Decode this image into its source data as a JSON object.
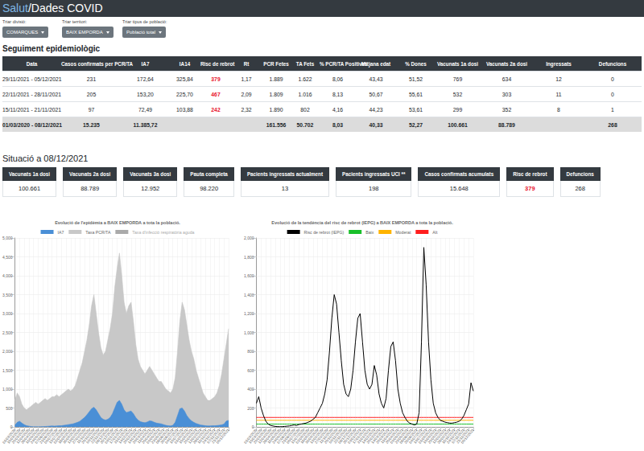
{
  "header": {
    "brand": "Salut",
    "title": "/Dades COVID"
  },
  "filters": [
    {
      "label": "Triar divisió:",
      "value": "COMARQUES"
    },
    {
      "label": "Triar territori:",
      "value": "BAIX EMPORDA"
    },
    {
      "label": "Triar tipus de població:",
      "value": "Població total"
    }
  ],
  "section1": {
    "title": "Seguiment epidemiològic",
    "table": {
      "columns": [
        "Data",
        "Casos confirmats per PCR/TA",
        "IA7",
        "IA14",
        "Risc de rebrot",
        "Rt",
        "PCR Fetes",
        "TA Fets",
        "% PCR/TA Positives",
        "Mitjana edat",
        "% Dones",
        "Vacunats 1a dosi",
        "Vacunats 2a dosi",
        "Ingressats",
        "Defuncions"
      ],
      "rows": [
        [
          "29/11/2021 - 05/12/2021",
          "231",
          "172,64",
          "325,84",
          {
            "text": "379",
            "color": "#e8102a"
          },
          "1,17",
          "1.889",
          "1.622",
          "8,06",
          "43,43",
          "51,52",
          "769",
          "634",
          "12",
          "0"
        ],
        [
          "22/11/2021 - 28/11/2021",
          "205",
          "153,20",
          "225,70",
          {
            "text": "467",
            "color": "#e8102a"
          },
          "2,09",
          "1.809",
          "1.016",
          "8,13",
          "50,67",
          "55,61",
          "532",
          "303",
          "11",
          "0"
        ],
        [
          "15/11/2021 - 21/11/2021",
          "97",
          "72,49",
          "103,88",
          {
            "text": "242",
            "color": "#e8102a"
          },
          "2,32",
          "1.890",
          "802",
          "4,16",
          "44,23",
          "53,61",
          "299",
          "352",
          "8",
          "1"
        ]
      ],
      "total": [
        "01/03/2020 - 08/12/2021",
        "15.235",
        "11.385,72",
        null,
        null,
        null,
        "161.556",
        "50.702",
        "8,03",
        "40,33",
        "52,27",
        "100.661",
        "88.789",
        null,
        "268"
      ]
    }
  },
  "section2": {
    "title": "Situació a 08/12/2021",
    "cards": [
      {
        "label": "Vacunats 1a dosi",
        "value": "100.661"
      },
      {
        "label": "Vacunats 2a dosi",
        "value": "88.789"
      },
      {
        "label": "Vacunats 3a dosi",
        "value": "12.952"
      },
      {
        "label": "Pauta completa",
        "value": "98.220"
      },
      {
        "label": "Pacients ingressats actualment",
        "value": "13"
      },
      {
        "label": "Pacients ingressats UCI **",
        "value": "198"
      },
      {
        "label": "Casos confirmats acumulats",
        "value": "15.648"
      },
      {
        "label": "Risc de rebrot",
        "value": {
          "text": "379",
          "color": "#e8102a"
        }
      },
      {
        "label": "Defuncions",
        "value": "268"
      }
    ]
  },
  "chart_data": [
    {
      "type": "area",
      "title": "Evolució de l'epidèmia a BAIX EMPORDA a tota la població.",
      "categories": [
        "01/03/2020",
        null,
        "15/03/2020",
        null,
        "29/03/2020",
        null,
        "12/04/2020",
        null,
        "26/04/2020",
        null,
        "10/05/2020",
        null,
        "24/05/2020",
        null,
        "07/06/2020",
        null,
        "21/06/2020",
        null,
        "05/07/2020",
        null,
        "19/07/2020",
        null,
        "02/08/2020",
        null,
        "16/08/2020",
        null,
        "30/08/2020",
        null,
        "13/09/2020",
        null,
        "27/09/2020",
        null,
        "11/10/2020",
        null,
        "25/10/2020",
        null,
        "08/11/2020",
        null,
        "22/11/2020",
        null,
        "06/12/2020",
        null,
        "20/12/2020",
        null,
        "03/01/2021",
        null,
        "17/01/2021",
        null,
        "31/01/2021",
        null,
        "14/02/2021",
        null,
        "28/02/2021",
        null,
        "14/03/2021",
        null,
        "28/03/2021",
        null,
        "11/04/2021",
        null,
        "25/04/2021",
        null,
        "09/05/2021",
        null,
        "23/05/2021",
        null,
        "06/06/2021",
        null,
        "20/06/2021",
        null,
        "04/07/2021",
        null,
        "18/07/2021",
        null,
        "01/08/2021",
        null,
        "15/08/2021",
        null,
        "29/08/2021",
        null,
        "12/09/2021",
        null,
        "26/09/2021",
        null,
        "10/10/2021",
        null,
        "24/10/2021",
        null,
        "07/11/2021",
        null,
        "21/11/2021",
        null,
        "05/12/2021"
      ],
      "series": [
        {
          "name": "IA7",
          "color": "#4a8fd6",
          "values": [
            40,
            120,
            150,
            100,
            60,
            30,
            20,
            10,
            5,
            5,
            5,
            5,
            10,
            10,
            15,
            20,
            25,
            20,
            25,
            30,
            30,
            40,
            50,
            60,
            70,
            80,
            100,
            120,
            150,
            200,
            250,
            320,
            400,
            480,
            520,
            450,
            350,
            250,
            200,
            180,
            200,
            250,
            350,
            500,
            650,
            700,
            600,
            450,
            380,
            400,
            420,
            350,
            250,
            180,
            140,
            120,
            110,
            130,
            160,
            150,
            120,
            100,
            90,
            80,
            60,
            40,
            30,
            25,
            40,
            120,
            300,
            480,
            500,
            420,
            300,
            220,
            160,
            120,
            90,
            70,
            50,
            40,
            30,
            25,
            25,
            30,
            30,
            35,
            45,
            55,
            72.49,
            153.2,
            172.64
          ]
        },
        {
          "name": "Taxa PCR/TA",
          "color": "#c8c8c8",
          "values": [
            700,
            900,
            800,
            600,
            500,
            450,
            500,
            550,
            600,
            650,
            600,
            650,
            700,
            750,
            700,
            750,
            800,
            800,
            850,
            800,
            850,
            900,
            950,
            1000,
            950,
            1000,
            1100,
            1300,
            1500,
            1700,
            2000,
            2300,
            2700,
            3200,
            3500,
            3000,
            2500,
            2100,
            1900,
            2000,
            2300,
            2600,
            3000,
            3700,
            4200,
            4600,
            4000,
            3300,
            3000,
            3200,
            3300,
            2800,
            2200,
            1800,
            1600,
            1500,
            1400,
            1500,
            1600,
            1500,
            1400,
            1300,
            1200,
            1200,
            1100,
            1000,
            950,
            900,
            1000,
            1300,
            2000,
            2800,
            3300,
            3100,
            2700,
            2300,
            2000,
            1800,
            1500,
            1300,
            1100,
            900,
            800,
            700,
            700,
            750,
            800,
            900,
            1100,
            1400,
            1800,
            2200,
            2600
          ]
        },
        {
          "name": "Taxa d'infecció respiratòria aguda",
          "color": "#8c8c8c",
          "values": [
            null,
            null,
            null,
            null,
            null,
            null,
            null,
            null,
            null,
            null,
            null,
            null,
            null,
            null,
            null,
            null,
            null,
            null,
            null,
            null,
            null,
            null,
            null,
            null,
            null,
            null,
            null,
            null,
            null,
            null,
            null,
            null,
            null,
            null,
            null,
            null,
            null,
            null,
            null,
            null,
            null,
            null,
            null,
            null,
            null,
            null,
            null,
            null,
            null,
            null,
            null,
            null,
            null,
            null,
            null,
            null,
            null,
            null,
            null,
            null,
            null,
            null,
            null,
            null,
            null,
            null,
            null,
            null,
            null,
            null,
            null,
            null,
            null,
            null,
            null,
            null,
            null,
            null,
            null,
            null,
            null,
            null,
            null,
            null,
            null,
            null,
            null,
            null,
            null,
            null,
            null,
            null,
            null
          ]
        }
      ],
      "ylim": [
        0,
        5000
      ],
      "yticks": [
        0,
        500,
        1000,
        1500,
        2000,
        2500,
        3000,
        3500,
        4000,
        4500,
        5000
      ],
      "grid": true,
      "legend": "top"
    },
    {
      "type": "line",
      "title": "Evolució de la tendència del risc de rebrot (IEPG) a BAIX EMPORDA a tota la població.",
      "categories": [
        "01/03/2020",
        null,
        "15/03/2020",
        null,
        "29/03/2020",
        null,
        "12/04/2020",
        null,
        "26/04/2020",
        null,
        "10/05/2020",
        null,
        "24/05/2020",
        null,
        "07/06/2020",
        null,
        "21/06/2020",
        null,
        "05/07/2020",
        null,
        "19/07/2020",
        null,
        "02/08/2020",
        null,
        "16/08/2020",
        null,
        "30/08/2020",
        null,
        "13/09/2020",
        null,
        "27/09/2020",
        null,
        "11/10/2020",
        null,
        "25/10/2020",
        null,
        "08/11/2020",
        null,
        "22/11/2020",
        null,
        "06/12/2020",
        null,
        "20/12/2020",
        null,
        "03/01/2021",
        null,
        "17/01/2021",
        null,
        "31/01/2021",
        null,
        "14/02/2021",
        null,
        "28/02/2021",
        null,
        "14/03/2021",
        null,
        "28/03/2021",
        null,
        "11/04/2021",
        null,
        "25/04/2021",
        null,
        "09/05/2021",
        null,
        "23/05/2021",
        null,
        "06/06/2021",
        null,
        "20/06/2021",
        null,
        "04/07/2021",
        null,
        "18/07/2021",
        null,
        "01/08/2021",
        null,
        "15/08/2021",
        null,
        "29/08/2021",
        null,
        "12/09/2021",
        null,
        "26/09/2021",
        null,
        "10/10/2021",
        null,
        "24/10/2021",
        null,
        "07/11/2021",
        null,
        "21/11/2021",
        null,
        "05/12/2021"
      ],
      "series": [
        {
          "name": "Risc de rebrot (IEPG)",
          "color": "#000000",
          "values": [
            250,
            320,
            200,
            120,
            60,
            30,
            15,
            10,
            5,
            3,
            2,
            3,
            5,
            8,
            10,
            15,
            20,
            15,
            25,
            30,
            35,
            40,
            50,
            60,
            80,
            100,
            150,
            200,
            250,
            350,
            500,
            800,
            1150,
            1400,
            1300,
            1000,
            700,
            450,
            350,
            320,
            400,
            600,
            900,
            1150,
            1200,
            900,
            600,
            450,
            400,
            450,
            650,
            550,
            350,
            250,
            200,
            300,
            600,
            850,
            900,
            700,
            400,
            250,
            150,
            100,
            60,
            40,
            30,
            20,
            30,
            150,
            900,
            1900,
            1500,
            900,
            500,
            250,
            150,
            100,
            70,
            60,
            50,
            45,
            40,
            40,
            45,
            50,
            60,
            80,
            120,
            180,
            242,
            467,
            379
          ]
        },
        {
          "name": "Baix",
          "color": "#19c02a",
          "values": [
            30,
            30,
            30,
            30,
            30,
            30,
            30,
            30,
            30,
            30,
            30,
            30,
            30,
            30,
            30,
            30,
            30,
            30,
            30,
            30,
            30,
            30,
            30,
            30,
            30,
            30,
            30,
            30,
            30,
            30,
            30,
            30,
            30,
            30,
            30,
            30,
            30,
            30,
            30,
            30,
            30,
            30,
            30,
            30,
            30,
            30,
            30,
            30,
            30,
            30,
            30,
            30,
            30,
            30,
            30,
            30,
            30,
            30,
            30,
            30,
            30,
            30,
            30,
            30,
            30,
            30,
            30,
            30,
            30,
            30,
            30,
            30,
            30,
            30,
            30,
            30,
            30,
            30,
            30,
            30,
            30,
            30,
            30,
            30,
            30,
            30,
            30,
            30,
            30,
            30,
            30,
            30,
            30
          ]
        },
        {
          "name": "Moderat",
          "color": "#ffb400",
          "values": [
            70,
            70,
            70,
            70,
            70,
            70,
            70,
            70,
            70,
            70,
            70,
            70,
            70,
            70,
            70,
            70,
            70,
            70,
            70,
            70,
            70,
            70,
            70,
            70,
            70,
            70,
            70,
            70,
            70,
            70,
            70,
            70,
            70,
            70,
            70,
            70,
            70,
            70,
            70,
            70,
            70,
            70,
            70,
            70,
            70,
            70,
            70,
            70,
            70,
            70,
            70,
            70,
            70,
            70,
            70,
            70,
            70,
            70,
            70,
            70,
            70,
            70,
            70,
            70,
            70,
            70,
            70,
            70,
            70,
            70,
            70,
            70,
            70,
            70,
            70,
            70,
            70,
            70,
            70,
            70,
            70,
            70,
            70,
            70,
            70,
            70,
            70,
            70,
            70,
            70,
            70,
            70,
            70
          ]
        },
        {
          "name": "Alt",
          "color": "#ff1e1e",
          "values": [
            100,
            100,
            100,
            100,
            100,
            100,
            100,
            100,
            100,
            100,
            100,
            100,
            100,
            100,
            100,
            100,
            100,
            100,
            100,
            100,
            100,
            100,
            100,
            100,
            100,
            100,
            100,
            100,
            100,
            100,
            100,
            100,
            100,
            100,
            100,
            100,
            100,
            100,
            100,
            100,
            100,
            100,
            100,
            100,
            100,
            100,
            100,
            100,
            100,
            100,
            100,
            100,
            100,
            100,
            100,
            100,
            100,
            100,
            100,
            100,
            100,
            100,
            100,
            100,
            100,
            100,
            100,
            100,
            100,
            100,
            100,
            100,
            100,
            100,
            100,
            100,
            100,
            100,
            100,
            100,
            100,
            100,
            100,
            100,
            100,
            100,
            100,
            100,
            100,
            100,
            100,
            100,
            100
          ]
        }
      ],
      "ylim": [
        0,
        2000
      ],
      "yticks": [
        0,
        200,
        400,
        600,
        800,
        1000,
        1200,
        1400,
        1600,
        1800,
        2000
      ],
      "grid": true,
      "legend": "top"
    }
  ]
}
